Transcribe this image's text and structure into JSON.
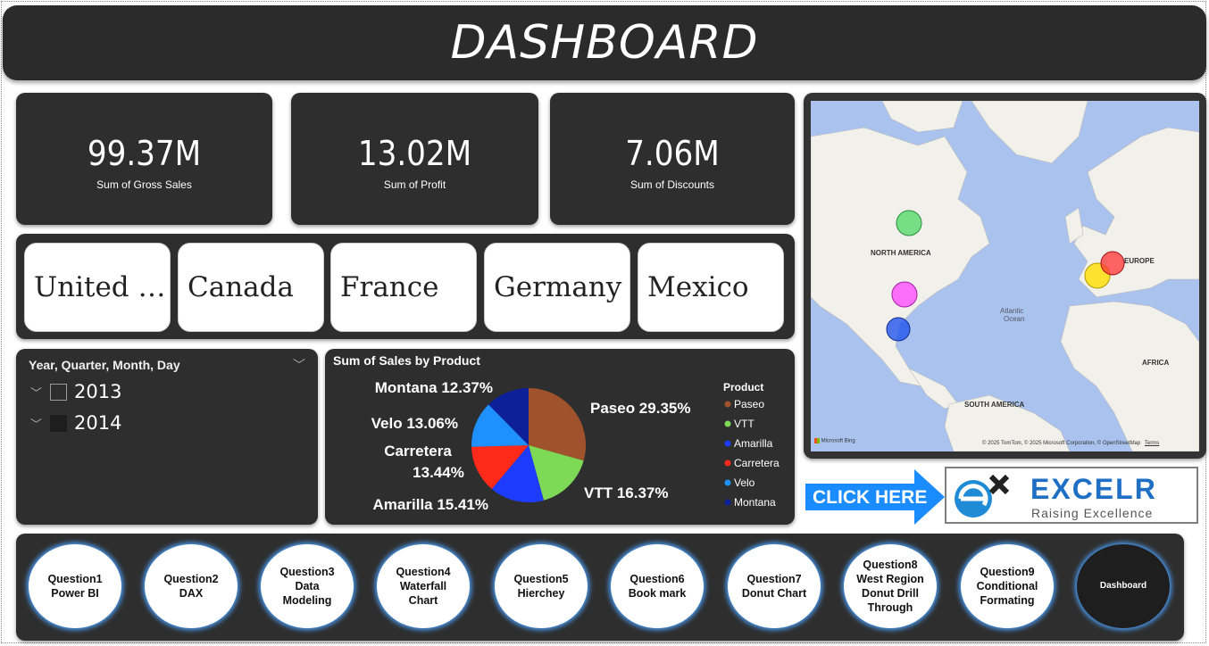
{
  "header": {
    "title": "DASHBOARD"
  },
  "kpis": [
    {
      "value": "99.37M",
      "label": "Sum of Gross Sales"
    },
    {
      "value": "13.02M",
      "label": "Sum of Profit"
    },
    {
      "value": "7.06M",
      "label": "Sum of Discounts"
    }
  ],
  "countries": [
    "United …",
    "Canada",
    "France",
    "Germany",
    "Mexico"
  ],
  "date_slicer": {
    "header": "Year, Quarter, Month, Day",
    "years": [
      {
        "label": "2013",
        "selected": false
      },
      {
        "label": "2014",
        "selected": true
      }
    ]
  },
  "chart_data": {
    "type": "pie",
    "title": "Sum of Sales by Product",
    "legend_title": "Product",
    "legend_position": "right",
    "series": [
      {
        "name": "Paseo",
        "value": 29.35,
        "label": "Paseo 29.35%",
        "color": "#a0522d"
      },
      {
        "name": "VTT",
        "value": 16.37,
        "label": "VTT 16.37%",
        "color": "#7ed957"
      },
      {
        "name": "Amarilla",
        "value": 15.41,
        "label": "Amarilla 15.41%",
        "color": "#1e3cff"
      },
      {
        "name": "Carretera",
        "value": 13.44,
        "label": "Carretera 13.44%",
        "color": "#ff2a1a"
      },
      {
        "name": "Velo",
        "value": 13.06,
        "label": "Velo 13.06%",
        "color": "#1e90ff"
      },
      {
        "name": "Montana",
        "value": 12.37,
        "label": "Montana 12.37%",
        "color": "#0d1f99"
      }
    ]
  },
  "map": {
    "labels": [
      "NORTH AMERICA",
      "EUROPE",
      "Atlantic",
      "Ocean",
      "AFRICA",
      "SOUTH AMERICA"
    ],
    "credit": "© 2025 TomTom, © 2025 Microsoft Corporation, © OpenStreetMap",
    "terms": "Terms",
    "brand": "Microsoft Bing"
  },
  "click_here": {
    "label": "CLICK HERE"
  },
  "logo": {
    "name": "EXCELR",
    "tagline": "Raising Excellence"
  },
  "nav_buttons": [
    "Question1\nPower BI",
    "Question2\nDAX",
    "Question3\nData\nModeling",
    "Question4\nWaterfall\nChart",
    "Question5\nHierchey",
    "Question6\nBook mark",
    "Question7\nDonut Chart",
    "Question8\nWest Region\nDonut Drill\nThrough",
    "Question9\nConditional\nFormating",
    "Dashboard"
  ]
}
